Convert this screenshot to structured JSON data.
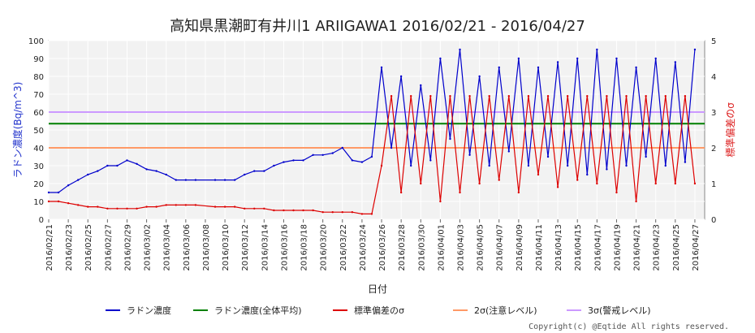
{
  "chart_data": {
    "type": "line",
    "title": "高知県黒潮町有井川1 ARIIGAWA1 2016/02/21 - 2016/04/27",
    "xlabel": "日付",
    "ylabel_left": "ラドン濃度(Bq/m^3)",
    "ylabel_right": "標準偏差のσ",
    "xlim": [
      "2016/02/21",
      "2016/04/28"
    ],
    "ylim_left": [
      0,
      100
    ],
    "ylim_right": [
      0,
      5
    ],
    "grid": true,
    "legend_position": "bottom",
    "y_ticks_left": [
      "0",
      "10",
      "20",
      "30",
      "40",
      "50",
      "60",
      "70",
      "80",
      "90",
      "100"
    ],
    "y_ticks_right": [
      "0",
      "1",
      "2",
      "3",
      "4",
      "5"
    ],
    "x_ticks": [
      "2016/02/21",
      "2016/02/23",
      "2016/02/25",
      "2016/02/27",
      "2016/02/29",
      "2016/03/02",
      "2016/03/04",
      "2016/03/06",
      "2016/03/08",
      "2016/03/10",
      "2016/03/12",
      "2016/03/14",
      "2016/03/16",
      "2016/03/18",
      "2016/03/20",
      "2016/03/22",
      "2016/03/24",
      "2016/03/26",
      "2016/03/28",
      "2016/03/30",
      "2016/04/01",
      "2016/04/03",
      "2016/04/05",
      "2016/04/07",
      "2016/04/09",
      "2016/04/11",
      "2016/04/13",
      "2016/04/15",
      "2016/04/17",
      "2016/04/19",
      "2016/04/21",
      "2016/04/23",
      "2016/04/25",
      "2016/04/27"
    ],
    "series": [
      {
        "name": "ラドン濃度",
        "color": "#0000cc",
        "axis": "left",
        "x": [
          "2016/02/21",
          "2016/02/22",
          "2016/02/23",
          "2016/02/24",
          "2016/02/25",
          "2016/02/26",
          "2016/02/27",
          "2016/02/28",
          "2016/02/29",
          "2016/03/01",
          "2016/03/02",
          "2016/03/03",
          "2016/03/04",
          "2016/03/05",
          "2016/03/06",
          "2016/03/07",
          "2016/03/09",
          "2016/03/10",
          "2016/03/11",
          "2016/03/12",
          "2016/03/13",
          "2016/03/14",
          "2016/03/15",
          "2016/03/16",
          "2016/03/17",
          "2016/03/18",
          "2016/03/19",
          "2016/03/20",
          "2016/03/21",
          "2016/03/22",
          "2016/03/23",
          "2016/03/24",
          "2016/03/25",
          "2016/03/26",
          "2016/03/27",
          "2016/03/28",
          "2016/03/29",
          "2016/03/30",
          "2016/03/31",
          "2016/04/01",
          "2016/04/02",
          "2016/04/03",
          "2016/04/04",
          "2016/04/05",
          "2016/04/06",
          "2016/04/07",
          "2016/04/08",
          "2016/04/09",
          "2016/04/10",
          "2016/04/11",
          "2016/04/12",
          "2016/04/13",
          "2016/04/14",
          "2016/04/15",
          "2016/04/16",
          "2016/04/17",
          "2016/04/18",
          "2016/04/19",
          "2016/04/20",
          "2016/04/21",
          "2016/04/22",
          "2016/04/23",
          "2016/04/24",
          "2016/04/25",
          "2016/04/26",
          "2016/04/27"
        ],
        "y": [
          15,
          15,
          19,
          22,
          25,
          27,
          30,
          30,
          33,
          31,
          28,
          27,
          25,
          22,
          22,
          22,
          22,
          22,
          22,
          25,
          27,
          27,
          30,
          32,
          33,
          33,
          36,
          36,
          37,
          40,
          33,
          32,
          35,
          85,
          40,
          80,
          30,
          75,
          33,
          90,
          45,
          95,
          36,
          80,
          30,
          85,
          38,
          90,
          30,
          85,
          35,
          88,
          30,
          90,
          25,
          95,
          28,
          90,
          30,
          85,
          35,
          90,
          30,
          88,
          32,
          95
        ]
      },
      {
        "name": "ラドン濃度(全体平均)",
        "color": "#008000",
        "axis": "left",
        "x": [
          "2016/02/21",
          "2016/04/28"
        ],
        "y": [
          53.5,
          53.5
        ]
      },
      {
        "name": "標準偏差のσ",
        "color": "#dd0000",
        "axis": "left",
        "x": [
          "2016/02/21",
          "2016/02/22",
          "2016/02/23",
          "2016/02/24",
          "2016/02/25",
          "2016/02/26",
          "2016/02/27",
          "2016/02/28",
          "2016/02/29",
          "2016/03/01",
          "2016/03/02",
          "2016/03/03",
          "2016/03/04",
          "2016/03/05",
          "2016/03/06",
          "2016/03/07",
          "2016/03/09",
          "2016/03/10",
          "2016/03/11",
          "2016/03/12",
          "2016/03/13",
          "2016/03/14",
          "2016/03/15",
          "2016/03/16",
          "2016/03/17",
          "2016/03/18",
          "2016/03/19",
          "2016/03/20",
          "2016/03/21",
          "2016/03/22",
          "2016/03/23",
          "2016/03/24",
          "2016/03/25",
          "2016/03/26",
          "2016/03/27",
          "2016/03/28",
          "2016/03/29",
          "2016/03/30",
          "2016/03/31",
          "2016/04/01",
          "2016/04/02",
          "2016/04/03",
          "2016/04/04",
          "2016/04/05",
          "2016/04/06",
          "2016/04/07",
          "2016/04/08",
          "2016/04/09",
          "2016/04/10",
          "2016/04/11",
          "2016/04/12",
          "2016/04/13",
          "2016/04/14",
          "2016/04/15",
          "2016/04/16",
          "2016/04/17",
          "2016/04/18",
          "2016/04/19",
          "2016/04/20",
          "2016/04/21",
          "2016/04/22",
          "2016/04/23",
          "2016/04/24",
          "2016/04/25",
          "2016/04/26",
          "2016/04/27"
        ],
        "y": [
          10,
          10,
          9,
          8,
          7,
          7,
          6,
          6,
          6,
          6,
          7,
          7,
          8,
          8,
          8,
          8,
          7,
          7,
          7,
          6,
          6,
          6,
          5,
          5,
          5,
          5,
          5,
          4,
          4,
          4,
          4,
          3,
          3,
          30,
          69,
          15,
          69,
          20,
          69,
          10,
          69,
          15,
          69,
          20,
          69,
          22,
          69,
          15,
          69,
          25,
          69,
          18,
          69,
          22,
          69,
          20,
          69,
          15,
          69,
          10,
          69,
          20,
          69,
          20,
          69,
          20
        ]
      },
      {
        "name": "2σ(注意レベル)",
        "color": "#ff9966",
        "axis": "left",
        "x": [
          "2016/02/21",
          "2016/04/28"
        ],
        "y": [
          40,
          40
        ]
      },
      {
        "name": "3σ(警戒レベル)",
        "color": "#cc99ff",
        "axis": "left",
        "x": [
          "2016/02/21",
          "2016/04/28"
        ],
        "y": [
          60,
          60
        ]
      }
    ]
  },
  "copyright": "Copyright(c) @Eqtide All rights reserved."
}
